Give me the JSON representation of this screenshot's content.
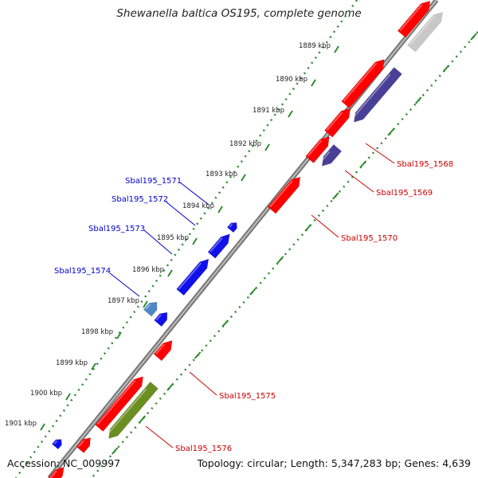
{
  "title": "Shewanella baltica OS195, complete genome",
  "footer": {
    "accession": "Accession: NC_009997",
    "summary": "Topology: circular; Length: 5,347,283 bp; Genes: 4,639"
  },
  "colors": {
    "forward_gene": "#ff0000",
    "reverse_gene": "#1010e8",
    "purple_gene": "#4a3f96",
    "light_blue_gene": "#4f86c6",
    "green_gene": "#6b8e23",
    "grey_gene": "#c8c8c8",
    "backbone": "#888888",
    "tick_green": "#2e8b2e",
    "label_red": "#cc0000",
    "label_blue": "#0000cc"
  },
  "kbp_ticks": [
    "1889 kbp",
    "1890 kbp",
    "1891 kbp",
    "1892 kbp",
    "1893 kbp",
    "1894 kbp",
    "1895 kbp",
    "1896 kbp",
    "1897 kbp",
    "1898 kbp",
    "1899 kbp",
    "1900 kbp",
    "1901 kbp"
  ],
  "labels": {
    "right": [
      "Sbal195_1568",
      "Sbal195_1569",
      "Sbal195_1570",
      "Sbal195_1575",
      "Sbal195_1576"
    ],
    "left": [
      "Sbal195_1571",
      "Sbal195_1572",
      "Sbal195_1573",
      "Sbal195_1574"
    ]
  }
}
